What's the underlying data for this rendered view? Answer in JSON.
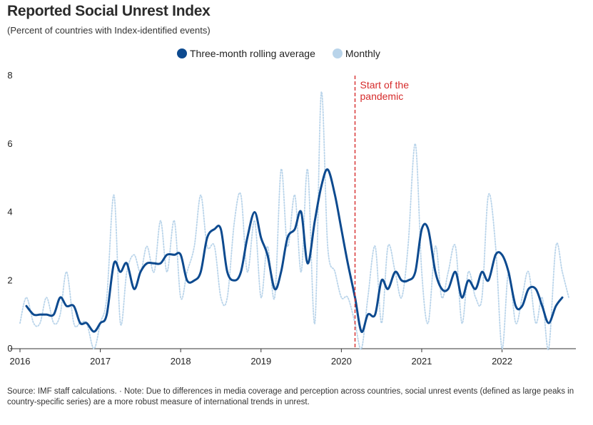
{
  "header": {
    "title": "Reported Social Unrest Index",
    "subtitle": "(Percent of countries with Index-identified events)"
  },
  "legend": {
    "rolling_label": "Three-month rolling average",
    "monthly_label": "Monthly"
  },
  "colors": {
    "rolling": "#0d4a8f",
    "monthly": "#b9d4ea",
    "pandemic": "#d62b2b",
    "axis": "#333333"
  },
  "annotation": {
    "line1": "Start of the",
    "line2": "pandemic"
  },
  "footer": {
    "source": "Source: IMF staff calculations. · Note: Due to differences in media coverage and perception across countries, social unrest events (defined as large peaks in country-specific series) are a more robust measure of international trends in unrest."
  },
  "chart_data": {
    "type": "line",
    "title": "Reported Social Unrest Index",
    "subtitle": "(Percent of countries with Index-identified events)",
    "xlabel": "",
    "ylabel": "",
    "ylim": [
      0,
      8
    ],
    "yticks": [
      0,
      2,
      4,
      6,
      8
    ],
    "xlim": [
      2016.0,
      2022.83
    ],
    "xticks": [
      {
        "value": 2016,
        "label": "2016"
      },
      {
        "value": 2017,
        "label": "2017"
      },
      {
        "value": 2018,
        "label": "2018"
      },
      {
        "value": 2019,
        "label": "2019"
      },
      {
        "value": 2020,
        "label": "2020"
      },
      {
        "value": 2021,
        "label": "2021"
      },
      {
        "value": 2022,
        "label": "2022"
      }
    ],
    "grid": false,
    "legend_position": "top-center",
    "pandemic_marker": 2020.17,
    "series": [
      {
        "name": "Three-month rolling average",
        "style": "solid",
        "x": [
          2016.08,
          2016.17,
          2016.25,
          2016.33,
          2016.42,
          2016.5,
          2016.58,
          2016.67,
          2016.75,
          2016.83,
          2016.92,
          2017.0,
          2017.08,
          2017.17,
          2017.25,
          2017.33,
          2017.42,
          2017.5,
          2017.58,
          2017.67,
          2017.75,
          2017.83,
          2017.92,
          2018.0,
          2018.08,
          2018.17,
          2018.25,
          2018.33,
          2018.42,
          2018.5,
          2018.58,
          2018.67,
          2018.75,
          2018.83,
          2018.92,
          2019.0,
          2019.08,
          2019.17,
          2019.25,
          2019.33,
          2019.42,
          2019.5,
          2019.58,
          2019.67,
          2019.75,
          2019.83,
          2019.92,
          2020.0,
          2020.08,
          2020.17,
          2020.25,
          2020.33,
          2020.42,
          2020.5,
          2020.58,
          2020.67,
          2020.75,
          2020.83,
          2020.92,
          2021.0,
          2021.08,
          2021.17,
          2021.25,
          2021.33,
          2021.42,
          2021.5,
          2021.58,
          2021.67,
          2021.75,
          2021.83,
          2021.92,
          2022.0,
          2022.08,
          2022.17,
          2022.25,
          2022.33,
          2022.42,
          2022.5,
          2022.58,
          2022.67,
          2022.75
        ],
        "values": [
          1.25,
          1.0,
          1.0,
          1.0,
          1.0,
          1.5,
          1.25,
          1.25,
          0.75,
          0.75,
          0.5,
          0.75,
          1.0,
          2.5,
          2.25,
          2.5,
          1.75,
          2.25,
          2.5,
          2.5,
          2.5,
          2.75,
          2.75,
          2.75,
          2.0,
          2.0,
          2.25,
          3.25,
          3.5,
          3.5,
          2.25,
          2.0,
          2.25,
          3.25,
          4.0,
          3.25,
          2.75,
          1.75,
          2.25,
          3.25,
          3.5,
          4.0,
          2.5,
          3.75,
          4.75,
          5.25,
          4.5,
          3.5,
          2.5,
          1.5,
          0.5,
          1.0,
          1.0,
          2.0,
          1.75,
          2.25,
          2.0,
          2.0,
          2.25,
          3.5,
          3.5,
          2.25,
          1.75,
          1.75,
          2.25,
          1.5,
          2.0,
          1.75,
          2.25,
          2.0,
          2.75,
          2.75,
          2.25,
          1.25,
          1.25,
          1.75,
          1.75,
          1.25,
          0.75,
          1.25,
          1.5
        ]
      },
      {
        "name": "Monthly",
        "style": "dotted",
        "x": [
          2016.0,
          2016.08,
          2016.17,
          2016.25,
          2016.33,
          2016.42,
          2016.5,
          2016.58,
          2016.67,
          2016.75,
          2016.83,
          2016.92,
          2017.0,
          2017.08,
          2017.17,
          2017.25,
          2017.33,
          2017.42,
          2017.5,
          2017.58,
          2017.67,
          2017.75,
          2017.83,
          2017.92,
          2018.0,
          2018.08,
          2018.17,
          2018.25,
          2018.33,
          2018.42,
          2018.5,
          2018.58,
          2018.67,
          2018.75,
          2018.83,
          2018.92,
          2019.0,
          2019.08,
          2019.17,
          2019.25,
          2019.33,
          2019.42,
          2019.5,
          2019.58,
          2019.67,
          2019.75,
          2019.83,
          2019.92,
          2020.0,
          2020.08,
          2020.17,
          2020.25,
          2020.33,
          2020.42,
          2020.5,
          2020.58,
          2020.67,
          2020.75,
          2020.83,
          2020.92,
          2021.0,
          2021.08,
          2021.17,
          2021.25,
          2021.33,
          2021.42,
          2021.5,
          2021.58,
          2021.67,
          2021.75,
          2021.83,
          2021.92,
          2022.0,
          2022.08,
          2022.17,
          2022.25,
          2022.33,
          2022.42,
          2022.5,
          2022.58,
          2022.67,
          2022.75,
          2022.83
        ],
        "values": [
          0.75,
          1.5,
          0.75,
          0.75,
          1.5,
          0.75,
          1.0,
          2.25,
          0.75,
          0.75,
          0.75,
          0.0,
          0.75,
          1.5,
          4.5,
          0.75,
          2.25,
          2.75,
          2.25,
          3.0,
          2.25,
          3.75,
          2.25,
          3.75,
          1.5,
          2.25,
          3.0,
          4.5,
          3.0,
          3.0,
          1.5,
          1.5,
          3.75,
          4.5,
          2.25,
          3.75,
          1.5,
          3.0,
          1.5,
          5.25,
          3.0,
          4.5,
          2.25,
          5.25,
          0.75,
          7.5,
          3.0,
          2.25,
          1.5,
          1.5,
          0.75,
          0.0,
          1.5,
          3.0,
          0.75,
          3.0,
          2.25,
          1.5,
          3.0,
          6.0,
          2.25,
          0.75,
          3.0,
          1.5,
          2.25,
          3.0,
          0.75,
          2.25,
          1.5,
          1.5,
          4.5,
          3.0,
          0.0,
          2.25,
          0.75,
          1.5,
          2.25,
          0.75,
          1.5,
          0.0,
          3.0,
          2.25,
          1.5
        ]
      }
    ]
  }
}
